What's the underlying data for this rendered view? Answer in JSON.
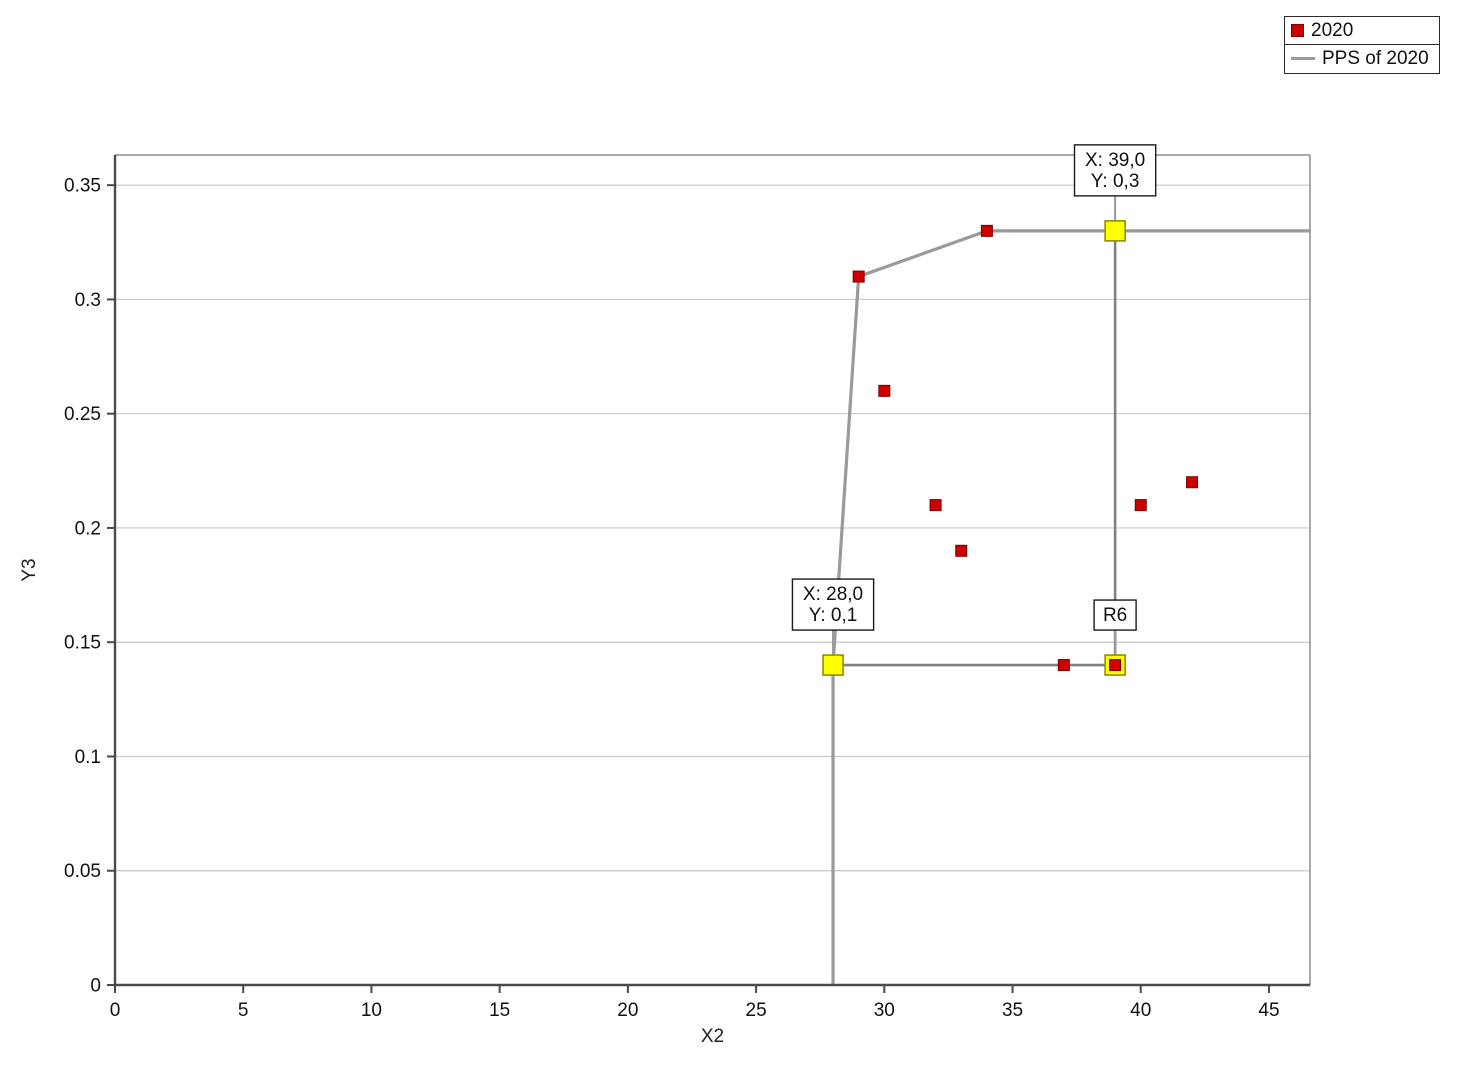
{
  "legend": {
    "items": [
      {
        "label": "2020",
        "marker": "square",
        "color": "#cc0000"
      },
      {
        "label": "PPS of 2020",
        "marker": "line",
        "color": "#9a9a9a"
      }
    ]
  },
  "chart_data": {
    "type": "scatter",
    "title": "",
    "xlabel": "X2",
    "ylabel": "Y3",
    "xlim": [
      0,
      46.6
    ],
    "ylim": [
      0,
      0.3632
    ],
    "xticks": [
      0,
      5,
      10,
      15,
      20,
      25,
      30,
      35,
      40,
      45
    ],
    "xtick_labels": [
      "0",
      "5",
      "10",
      "15",
      "20",
      "25",
      "30",
      "35",
      "40",
      "45"
    ],
    "yticks": [
      0,
      0.05,
      0.1,
      0.15,
      0.2,
      0.25,
      0.3,
      0.35
    ],
    "ytick_labels": [
      "0",
      "0.05",
      "0.1",
      "0.15",
      "0.2",
      "0.25",
      "0.3",
      "0.35"
    ],
    "grid": "horizontal-only",
    "legend_position": "top-right",
    "series": [
      {
        "name": "2020",
        "type": "scatter",
        "marker": "square",
        "color": "#cc0000",
        "points": [
          [
            29,
            0.31
          ],
          [
            30,
            0.26
          ],
          [
            32,
            0.21
          ],
          [
            33,
            0.19
          ],
          [
            34,
            0.33
          ],
          [
            37,
            0.14
          ],
          [
            39,
            0.14
          ],
          [
            40,
            0.21
          ],
          [
            42,
            0.22
          ]
        ]
      },
      {
        "name": "PPS of 2020",
        "type": "line",
        "color": "#9a9a9a",
        "points": [
          [
            28,
            0
          ],
          [
            28,
            0.14
          ],
          [
            29,
            0.31
          ],
          [
            34,
            0.33
          ],
          [
            46.6,
            0.33
          ]
        ]
      }
    ],
    "projection_path": {
      "color": "#808080",
      "points": [
        [
          28,
          0.14
        ],
        [
          39,
          0.14
        ],
        [
          39,
          0.33
        ]
      ]
    },
    "highlighted_points": {
      "color": "#ffff00",
      "points": [
        [
          28,
          0.14
        ],
        [
          39,
          0.14
        ],
        [
          39,
          0.33
        ]
      ]
    },
    "annotations": [
      {
        "lines": [
          "X: 39,0",
          "Y: 0,3"
        ],
        "x": 39,
        "y": 0.33
      },
      {
        "lines": [
          "X: 28,0",
          "Y: 0,1"
        ],
        "x": 28,
        "y": 0.14
      },
      {
        "lines": [
          "R6"
        ],
        "x": 39,
        "y": 0.14
      }
    ]
  }
}
